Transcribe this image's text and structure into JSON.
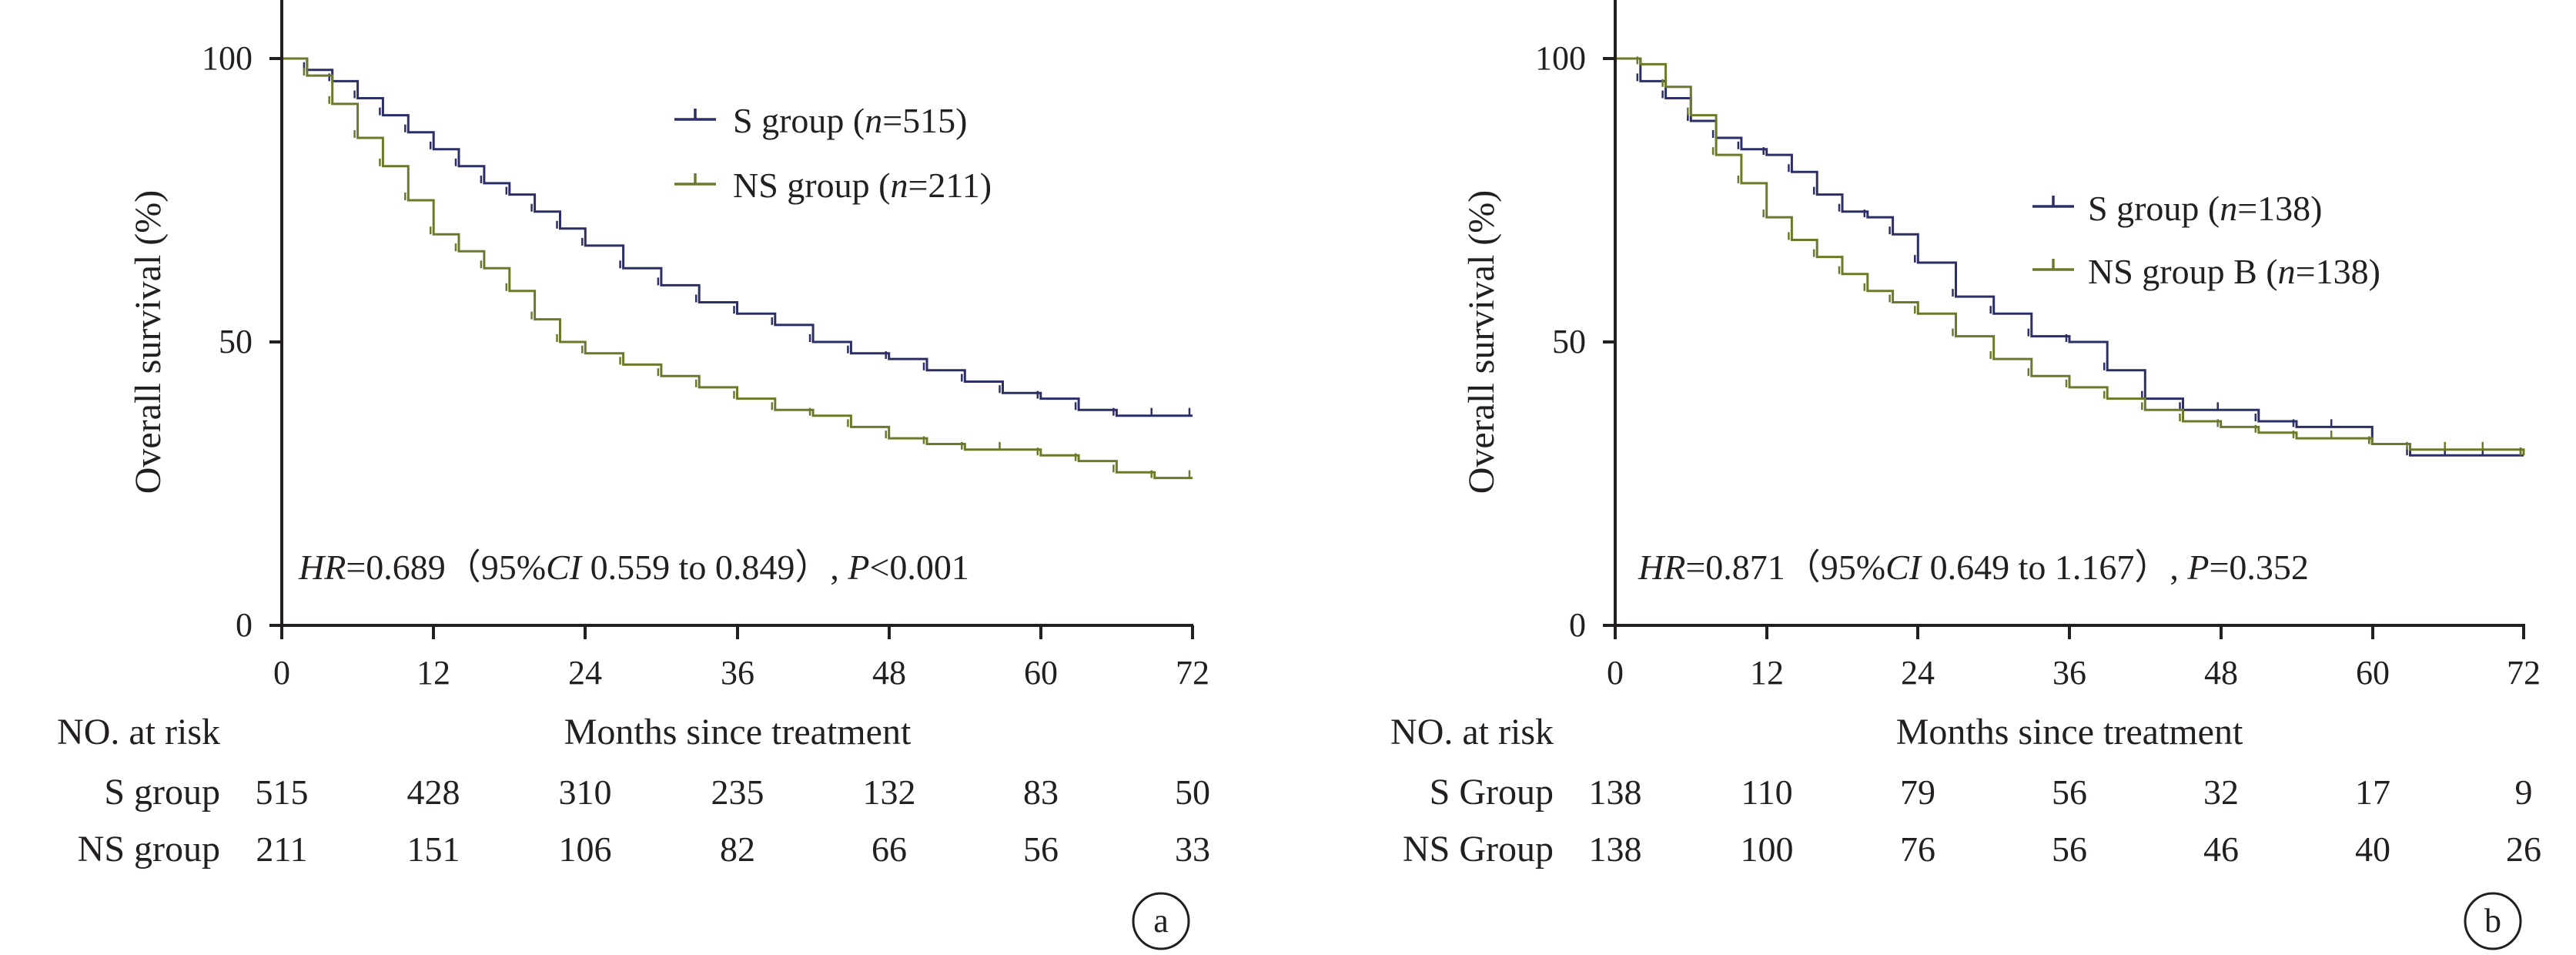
{
  "panels": [
    {
      "id": "a",
      "ylabel": "Overall survival (%)",
      "xlabel": "Months since treatment",
      "y_ticks": [
        "0",
        "50",
        "100"
      ],
      "x_ticks": [
        "0",
        "12",
        "24",
        "36",
        "48",
        "60",
        "72"
      ],
      "annotation": {
        "parts": [
          {
            "text": "HR",
            "italic": true
          },
          {
            "text": "=0.689（95%",
            "italic": false
          },
          {
            "text": "CI",
            "italic": true
          },
          {
            "text": " 0.559 to 0.849）, ",
            "italic": false
          },
          {
            "text": "P",
            "italic": true
          },
          {
            "text": "<0.001",
            "italic": false
          }
        ]
      },
      "legend": [
        {
          "label_pre": "S group (",
          "n_symbol": "n",
          "label_post": "=515)",
          "color": "#2b2f66"
        },
        {
          "label_pre": "NS group (",
          "n_symbol": "n",
          "label_post": "=211)",
          "color": "#6b7a2a"
        }
      ],
      "risk_header": "NO. at risk",
      "risk_rows": [
        {
          "label": "S group",
          "values": [
            "515",
            "428",
            "310",
            "235",
            "132",
            "83",
            "50"
          ]
        },
        {
          "label": "NS group",
          "values": [
            "211",
            "151",
            "106",
            "82",
            "66",
            "56",
            "33"
          ]
        }
      ],
      "panel_label": "a"
    },
    {
      "id": "b",
      "ylabel": "Overall survival (%)",
      "xlabel": "Months since treatment",
      "y_ticks": [
        "0",
        "50",
        "100"
      ],
      "x_ticks": [
        "0",
        "12",
        "24",
        "36",
        "48",
        "60",
        "72"
      ],
      "annotation": {
        "parts": [
          {
            "text": "HR",
            "italic": true
          },
          {
            "text": "=0.871（95%",
            "italic": false
          },
          {
            "text": "CI",
            "italic": true
          },
          {
            "text": " 0.649 to 1.167）, ",
            "italic": false
          },
          {
            "text": "P",
            "italic": true
          },
          {
            "text": "=0.352",
            "italic": false
          }
        ]
      },
      "legend": [
        {
          "label_pre": "S group (",
          "n_symbol": "n",
          "label_post": "=138)",
          "color": "#2b2f66"
        },
        {
          "label_pre": "NS group B (",
          "n_symbol": "n",
          "label_post": "=138)",
          "color": "#6b7a2a"
        }
      ],
      "risk_header": "NO. at risk",
      "risk_rows": [
        {
          "label": "S Group",
          "values": [
            "138",
            "110",
            "79",
            "56",
            "32",
            "17",
            "9"
          ]
        },
        {
          "label": "NS Group",
          "values": [
            "138",
            "100",
            "76",
            "56",
            "46",
            "40",
            "26"
          ]
        }
      ],
      "panel_label": "b"
    }
  ],
  "chart_data": [
    {
      "type": "line",
      "step": true,
      "xlim": [
        0,
        72
      ],
      "ylim": [
        0,
        100
      ],
      "series": [
        {
          "name": "S group (n=515)",
          "color": "#2b2f66",
          "x": [
            0,
            2,
            4,
            6,
            8,
            10,
            12,
            14,
            16,
            18,
            20,
            22,
            24,
            27,
            30,
            33,
            36,
            39,
            42,
            45,
            48,
            51,
            54,
            57,
            60,
            63,
            66,
            69,
            72
          ],
          "y": [
            100,
            98,
            96,
            93,
            90,
            87,
            84,
            81,
            78,
            76,
            73,
            70,
            67,
            63,
            60,
            57,
            55,
            53,
            50,
            48,
            47,
            45,
            43,
            41,
            40,
            38,
            37,
            37,
            37
          ]
        },
        {
          "name": "NS group (n=211)",
          "color": "#6b7a2a",
          "x": [
            0,
            2,
            4,
            6,
            8,
            10,
            12,
            14,
            16,
            18,
            20,
            22,
            24,
            27,
            30,
            33,
            36,
            39,
            42,
            45,
            48,
            51,
            54,
            57,
            60,
            63,
            66,
            69,
            72
          ],
          "y": [
            100,
            97,
            92,
            86,
            81,
            75,
            69,
            66,
            63,
            59,
            54,
            50,
            48,
            46,
            44,
            42,
            40,
            38,
            37,
            35,
            33,
            32,
            31,
            31,
            30,
            29,
            27,
            26,
            26
          ]
        }
      ]
    },
    {
      "type": "line",
      "step": true,
      "xlim": [
        0,
        72
      ],
      "ylim": [
        0,
        100
      ],
      "series": [
        {
          "name": "S group (n=138)",
          "color": "#2b2f66",
          "x": [
            0,
            2,
            4,
            6,
            8,
            10,
            12,
            14,
            16,
            18,
            20,
            22,
            24,
            27,
            30,
            33,
            36,
            39,
            42,
            45,
            48,
            51,
            54,
            57,
            60,
            63,
            66,
            69,
            72
          ],
          "y": [
            100,
            96,
            93,
            89,
            86,
            84,
            83,
            80,
            76,
            73,
            72,
            69,
            64,
            58,
            55,
            51,
            50,
            45,
            40,
            38,
            38,
            36,
            35,
            35,
            32,
            30,
            30,
            30,
            30
          ]
        },
        {
          "name": "NS group B (n=138)",
          "color": "#6b7a2a",
          "x": [
            0,
            2,
            4,
            6,
            8,
            10,
            12,
            14,
            16,
            18,
            20,
            22,
            24,
            27,
            30,
            33,
            36,
            39,
            42,
            45,
            48,
            51,
            54,
            57,
            60,
            63,
            66,
            69,
            72
          ],
          "y": [
            100,
            99,
            95,
            90,
            83,
            78,
            72,
            68,
            65,
            62,
            59,
            57,
            55,
            51,
            47,
            44,
            42,
            40,
            38,
            36,
            35,
            34,
            33,
            33,
            32,
            31,
            31,
            31,
            30
          ]
        }
      ]
    }
  ]
}
